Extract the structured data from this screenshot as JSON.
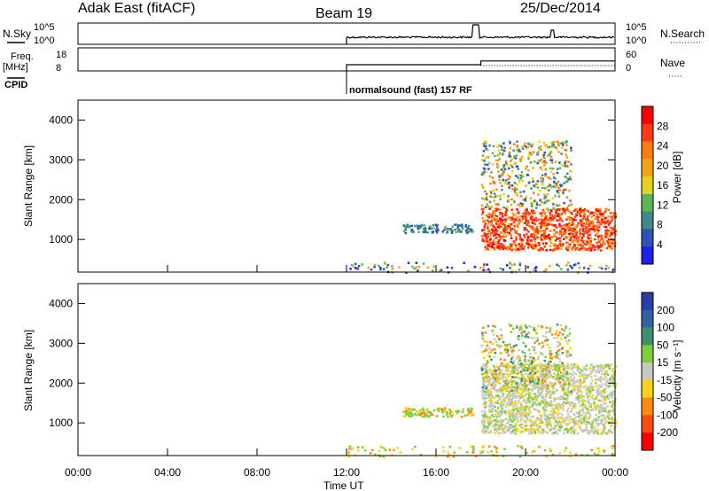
{
  "header": {
    "radar": "Adak East (fitACF)",
    "beam": "Beam 19",
    "date": "25/Dec/2014"
  },
  "side_labels": {
    "nsky": "N.Sky",
    "freq_line1": "Freq.",
    "freq_line2": "[MHz]",
    "cpid": "CPID",
    "nsearch": "N.Search",
    "nave": "Nave"
  },
  "chart_data": [
    {
      "type": "line",
      "name": "noise-panel",
      "left_axis_ticks": [
        "10^5",
        "10^0"
      ],
      "right_axis_ticks": [
        "10^5",
        "10^0"
      ],
      "x_range_hours": [
        0,
        24
      ],
      "data_start_hour": 12
    },
    {
      "type": "line",
      "name": "frequency-panel",
      "left_axis_ticks": [
        "18",
        "8"
      ],
      "right_axis_ticks": [
        "60",
        "0"
      ],
      "x_range_hours": [
        0,
        24
      ],
      "freq_segments": [
        {
          "x": [
            12,
            18
          ],
          "mhz": 10.7
        },
        {
          "x": [
            18,
            24
          ],
          "mhz": 12.3
        }
      ],
      "cpid_label": "normalsound (fast) 157 RF",
      "cpid_start_hour": 12
    },
    {
      "type": "heatmap",
      "name": "power",
      "ylabel": "Slant Range [km]",
      "yticks": [
        1000,
        2000,
        3000,
        4000
      ],
      "ylim": [
        180,
        4500
      ],
      "x_range_hours": [
        0,
        24
      ],
      "colorbar": {
        "label": "Power [dB]",
        "ticks": [
          "28",
          "24",
          "20",
          "16",
          "12",
          "8",
          "4"
        ],
        "levels": [
          0,
          4,
          8,
          12,
          16,
          20,
          24,
          28,
          30
        ],
        "colors_bottom_to_top": [
          "#1f1fe6",
          "#2e53b5",
          "#3e8a88",
          "#5cb653",
          "#e6d21e",
          "#f2a21a",
          "#ff7a12",
          "#ff3a12",
          "#ff0000"
        ]
      },
      "regions": [
        {
          "hours": [
            14.5,
            17.6
          ],
          "range_km": [
            1180,
            1400
          ],
          "level": "mid"
        },
        {
          "hours": [
            18.0,
            24.0
          ],
          "range_km": [
            750,
            1800
          ],
          "level": "high"
        },
        {
          "hours": [
            18.0,
            22.0
          ],
          "range_km": [
            1800,
            3500
          ],
          "level": "mixed"
        },
        {
          "hours": [
            12.0,
            24.0
          ],
          "range_km": [
            180,
            450
          ],
          "level": "low-sparse"
        }
      ]
    },
    {
      "type": "heatmap",
      "name": "velocity",
      "ylabel": "Slant Range [km]",
      "yticks": [
        1000,
        2000,
        3000,
        4000
      ],
      "ylim": [
        180,
        4500
      ],
      "x_range_hours": [
        0,
        24
      ],
      "colorbar": {
        "label": "Velocity [m s⁻¹]",
        "ticks": [
          "200",
          "100",
          "50",
          "15",
          "-15",
          "-50",
          "-100",
          "-200"
        ],
        "colors_top_to_bottom": [
          "#2b3da8",
          "#33629e",
          "#3f8f6e",
          "#7dcf3a",
          "#c8c8c0",
          "#ffd21a",
          "#ff8a12",
          "#ff4a12",
          "#ff0000"
        ]
      },
      "regions": [
        {
          "hours": [
            14.5,
            17.6
          ],
          "range_km": [
            1180,
            1400
          ],
          "level": "green-orange"
        },
        {
          "hours": [
            18.0,
            24.0
          ],
          "range_km": [
            750,
            2500
          ],
          "level": "grey"
        },
        {
          "hours": [
            18.0,
            22.0
          ],
          "range_km": [
            1800,
            3500
          ],
          "level": "green-mixed"
        },
        {
          "hours": [
            12.0,
            24.0
          ],
          "range_km": [
            180,
            450
          ],
          "level": "orange-sparse"
        }
      ]
    }
  ],
  "x_axis": {
    "ticks": [
      "00:00",
      "04:00",
      "08:00",
      "12:00",
      "16:00",
      "20:00",
      "00:00"
    ],
    "label": "Time UT"
  }
}
